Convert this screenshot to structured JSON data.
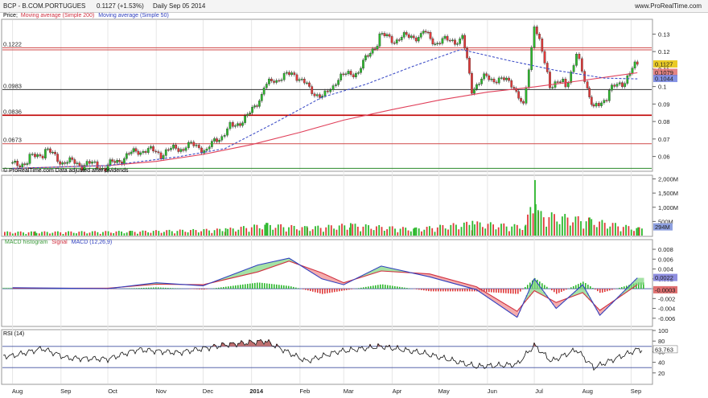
{
  "header": {
    "symbol": "BCP - B.COM.PORTUGUES",
    "price": "0.1127 (+1.53%)",
    "period": "Daily  Sep 05 2014",
    "brand": "www.ProRealTime.com"
  },
  "chart_data": {
    "type": "line",
    "title": "BCP - B.COM.PORTUGUES",
    "price_panel": {
      "legend_prefix": "Price;",
      "legend_ma200": "Moving average (Simple 200)",
      "legend_ma50": "Moving average (Simple 50)",
      "attribution": "© ProRealTime.com  Data adjusted after dividends",
      "ylim": [
        0.052,
        0.138
      ],
      "y_ticks": [
        "0.13",
        "0.12",
        "0.11",
        "0.1",
        "0.09",
        "0.08",
        "0.07",
        "0.06"
      ],
      "horizontal_levels": [
        {
          "label": "0.1222",
          "value": 0.1222,
          "color": "#d04848"
        },
        {
          "label": "",
          "value": 0.121,
          "color": "#d04848"
        },
        {
          "label": "0.0983",
          "value": 0.0983,
          "color": "#333333"
        },
        {
          "label": "0.0836",
          "value": 0.0836,
          "color": "#c00000"
        },
        {
          "label": "0.0673",
          "value": 0.0673,
          "color": "#d04848"
        },
        {
          "label": "",
          "value": 0.0532,
          "color": "#2a8a2a"
        }
      ],
      "price_badges": [
        {
          "label": "0.1127",
          "color": "#e6c200"
        },
        {
          "label": "0.1079",
          "color": "#e07070"
        },
        {
          "label": "0.1044",
          "color": "#7080e0"
        }
      ],
      "close_series": [
        {
          "date": "2013-08-01",
          "value": 0.0548
        },
        {
          "date": "2013-08-12",
          "value": 0.0583
        },
        {
          "date": "2013-08-22",
          "value": 0.0632
        },
        {
          "date": "2013-09-02",
          "value": 0.0566
        },
        {
          "date": "2013-09-16",
          "value": 0.0553
        },
        {
          "date": "2013-10-01",
          "value": 0.0541
        },
        {
          "date": "2013-10-10",
          "value": 0.0585
        },
        {
          "date": "2013-10-22",
          "value": 0.0636
        },
        {
          "date": "2013-11-04",
          "value": 0.0615
        },
        {
          "date": "2013-11-20",
          "value": 0.0658
        },
        {
          "date": "2013-12-05",
          "value": 0.0648
        },
        {
          "date": "2013-12-13",
          "value": 0.0721
        },
        {
          "date": "2013-12-20",
          "value": 0.0778
        },
        {
          "date": "2013-12-31",
          "value": 0.0842
        },
        {
          "date": "2014-01-09",
          "value": 0.0988
        },
        {
          "date": "2014-01-17",
          "value": 0.1046
        },
        {
          "date": "2014-01-30",
          "value": 0.1067
        },
        {
          "date": "2014-02-07",
          "value": 0.0985
        },
        {
          "date": "2014-02-17",
          "value": 0.0942
        },
        {
          "date": "2014-02-24",
          "value": 0.1032
        },
        {
          "date": "2014-03-12",
          "value": 0.1102
        },
        {
          "date": "2014-03-24",
          "value": 0.1285
        },
        {
          "date": "2014-04-04",
          "value": 0.1265
        },
        {
          "date": "2014-04-21",
          "value": 0.1305
        },
        {
          "date": "2014-04-30",
          "value": 0.1247
        },
        {
          "date": "2014-05-16",
          "value": 0.1278
        },
        {
          "date": "2014-05-22",
          "value": 0.0994
        },
        {
          "date": "2014-06-02",
          "value": 0.1058
        },
        {
          "date": "2014-06-18",
          "value": 0.1008
        },
        {
          "date": "2014-06-24",
          "value": 0.0875
        },
        {
          "date": "2014-07-01",
          "value": 0.1352
        },
        {
          "date": "2014-07-11",
          "value": 0.1018
        },
        {
          "date": "2014-07-21",
          "value": 0.1012
        },
        {
          "date": "2014-07-28",
          "value": 0.1172
        },
        {
          "date": "2014-08-04",
          "value": 0.0998
        },
        {
          "date": "2014-08-08",
          "value": 0.0862
        },
        {
          "date": "2014-08-18",
          "value": 0.0968
        },
        {
          "date": "2014-08-28",
          "value": 0.1034
        },
        {
          "date": "2014-09-05",
          "value": 0.1127
        }
      ],
      "ma200_series": [
        {
          "date": "2013-08-01",
          "value": 0.0532
        },
        {
          "date": "2013-10-01",
          "value": 0.0548
        },
        {
          "date": "2013-11-01",
          "value": 0.0572
        },
        {
          "date": "2013-12-01",
          "value": 0.0612
        },
        {
          "date": "2014-01-01",
          "value": 0.0668
        },
        {
          "date": "2014-02-01",
          "value": 0.0738
        },
        {
          "date": "2014-03-01",
          "value": 0.0808
        },
        {
          "date": "2014-04-01",
          "value": 0.0868
        },
        {
          "date": "2014-05-01",
          "value": 0.0922
        },
        {
          "date": "2014-06-01",
          "value": 0.0968
        },
        {
          "date": "2014-07-01",
          "value": 0.0998
        },
        {
          "date": "2014-08-01",
          "value": 0.1035
        },
        {
          "date": "2014-09-05",
          "value": 0.1079
        }
      ],
      "ma50_series": [
        {
          "date": "2013-08-01",
          "value": 0.0532
        },
        {
          "date": "2013-10-01",
          "value": 0.0548
        },
        {
          "date": "2013-11-15",
          "value": 0.0598
        },
        {
          "date": "2013-12-15",
          "value": 0.0645
        },
        {
          "date": "2014-01-15",
          "value": 0.0788
        },
        {
          "date": "2014-02-15",
          "value": 0.0938
        },
        {
          "date": "2014-03-15",
          "value": 0.1012
        },
        {
          "date": "2014-04-15",
          "value": 0.1118
        },
        {
          "date": "2014-05-15",
          "value": 0.1212
        },
        {
          "date": "2014-06-15",
          "value": 0.1148
        },
        {
          "date": "2014-07-15",
          "value": 0.1092
        },
        {
          "date": "2014-08-15",
          "value": 0.1048
        },
        {
          "date": "2014-09-05",
          "value": 0.1044
        }
      ]
    },
    "volume_panel": {
      "ylim": [
        0,
        2100
      ],
      "y_ticks": [
        "2,000M",
        "1,500M",
        "1,000M",
        "500M"
      ],
      "current_label": "294M",
      "series": [
        {
          "date": "2013-08-15",
          "value": 150
        },
        {
          "date": "2013-10-15",
          "value": 170
        },
        {
          "date": "2013-12-15",
          "value": 260
        },
        {
          "date": "2014-01-10",
          "value": 450
        },
        {
          "date": "2014-02-05",
          "value": 330
        },
        {
          "date": "2014-03-05",
          "value": 440
        },
        {
          "date": "2014-04-15",
          "value": 280
        },
        {
          "date": "2014-05-22",
          "value": 520
        },
        {
          "date": "2014-06-25",
          "value": 380
        },
        {
          "date": "2014-07-01",
          "value": 1960
        },
        {
          "date": "2014-07-03",
          "value": 900
        },
        {
          "date": "2014-08-05",
          "value": 640
        },
        {
          "date": "2014-09-05",
          "value": 294
        }
      ]
    },
    "macd_panel": {
      "legend_hist": "MACD histogram",
      "legend_signal": "Signal",
      "legend_macd": "MACD (12,26,9)",
      "ylim": [
        -0.0075,
        0.0098
      ],
      "y_ticks": [
        "0.008",
        "0.006",
        "0.004",
        "0.002",
        "0",
        "-0.002",
        "-0.004",
        "-0.006"
      ],
      "badges": [
        {
          "label": "0.0022",
          "color": "#8e8ee0"
        },
        {
          "label": "-0.0003",
          "color": "#e07070"
        }
      ],
      "macd_series": [
        {
          "date": "2013-08-01",
          "value": 0.0002
        },
        {
          "date": "2013-09-01",
          "value": 0.0001
        },
        {
          "date": "2013-10-01",
          "value": 0.0
        },
        {
          "date": "2013-11-01",
          "value": 0.0012
        },
        {
          "date": "2013-12-01",
          "value": 0.0006
        },
        {
          "date": "2014-01-05",
          "value": 0.0048
        },
        {
          "date": "2014-01-25",
          "value": 0.0062
        },
        {
          "date": "2014-02-15",
          "value": 0.002
        },
        {
          "date": "2014-03-01",
          "value": 0.0008
        },
        {
          "date": "2014-03-25",
          "value": 0.0046
        },
        {
          "date": "2014-04-25",
          "value": 0.0024
        },
        {
          "date": "2014-05-25",
          "value": -0.0002
        },
        {
          "date": "2014-06-20",
          "value": -0.0058
        },
        {
          "date": "2014-07-01",
          "value": 0.002
        },
        {
          "date": "2014-07-15",
          "value": -0.004
        },
        {
          "date": "2014-08-01",
          "value": 0.0008
        },
        {
          "date": "2014-08-12",
          "value": -0.0054
        },
        {
          "date": "2014-09-05",
          "value": 0.0022
        }
      ],
      "signal_series": [
        {
          "date": "2013-08-01",
          "value": 0.0001
        },
        {
          "date": "2013-09-01",
          "value": 0.0001
        },
        {
          "date": "2013-10-01",
          "value": 0.0001
        },
        {
          "date": "2013-11-01",
          "value": 0.0009
        },
        {
          "date": "2013-12-01",
          "value": 0.0008
        },
        {
          "date": "2014-01-05",
          "value": 0.0034
        },
        {
          "date": "2014-01-25",
          "value": 0.0056
        },
        {
          "date": "2014-02-15",
          "value": 0.0032
        },
        {
          "date": "2014-03-01",
          "value": 0.0012
        },
        {
          "date": "2014-03-25",
          "value": 0.0036
        },
        {
          "date": "2014-04-25",
          "value": 0.003
        },
        {
          "date": "2014-05-25",
          "value": 0.0004
        },
        {
          "date": "2014-06-20",
          "value": -0.0046
        },
        {
          "date": "2014-07-01",
          "value": -0.0004
        },
        {
          "date": "2014-07-15",
          "value": -0.0028
        },
        {
          "date": "2014-08-01",
          "value": -0.0008
        },
        {
          "date": "2014-08-12",
          "value": -0.0044
        },
        {
          "date": "2014-09-05",
          "value": 0.0008
        }
      ]
    },
    "rsi_panel": {
      "legend": "RSI (14)",
      "ylim": [
        0,
        100
      ],
      "y_ticks": [
        "100",
        "80",
        "60",
        "40",
        "20"
      ],
      "levels": [
        70,
        30
      ],
      "current_label": "63.763",
      "series": [
        {
          "date": "2013-08-01",
          "value": 52
        },
        {
          "date": "2013-08-20",
          "value": 66
        },
        {
          "date": "2013-09-05",
          "value": 48
        },
        {
          "date": "2013-10-01",
          "value": 46
        },
        {
          "date": "2013-10-20",
          "value": 64
        },
        {
          "date": "2013-11-15",
          "value": 58
        },
        {
          "date": "2013-12-15",
          "value": 73
        },
        {
          "date": "2014-01-10",
          "value": 80
        },
        {
          "date": "2014-02-05",
          "value": 42
        },
        {
          "date": "2014-02-25",
          "value": 60
        },
        {
          "date": "2014-03-25",
          "value": 70
        },
        {
          "date": "2014-04-20",
          "value": 58
        },
        {
          "date": "2014-05-25",
          "value": 32
        },
        {
          "date": "2014-06-20",
          "value": 36
        },
        {
          "date": "2014-07-01",
          "value": 72
        },
        {
          "date": "2014-07-12",
          "value": 42
        },
        {
          "date": "2014-07-28",
          "value": 64
        },
        {
          "date": "2014-08-08",
          "value": 30
        },
        {
          "date": "2014-09-05",
          "value": 64
        }
      ]
    },
    "x_ticks": [
      "Aug",
      "Sep",
      "Oct",
      "Nov",
      "Dec",
      "2014",
      "Feb",
      "Mar",
      "Apr",
      "May",
      "Jun",
      "Jul",
      "Aug",
      "Sep"
    ],
    "colors": {
      "up": "#2db82d",
      "down": "#e03a3a",
      "ma200": "#e0405a",
      "ma50": "#4050c8",
      "grid": "#e6e6e6"
    }
  }
}
